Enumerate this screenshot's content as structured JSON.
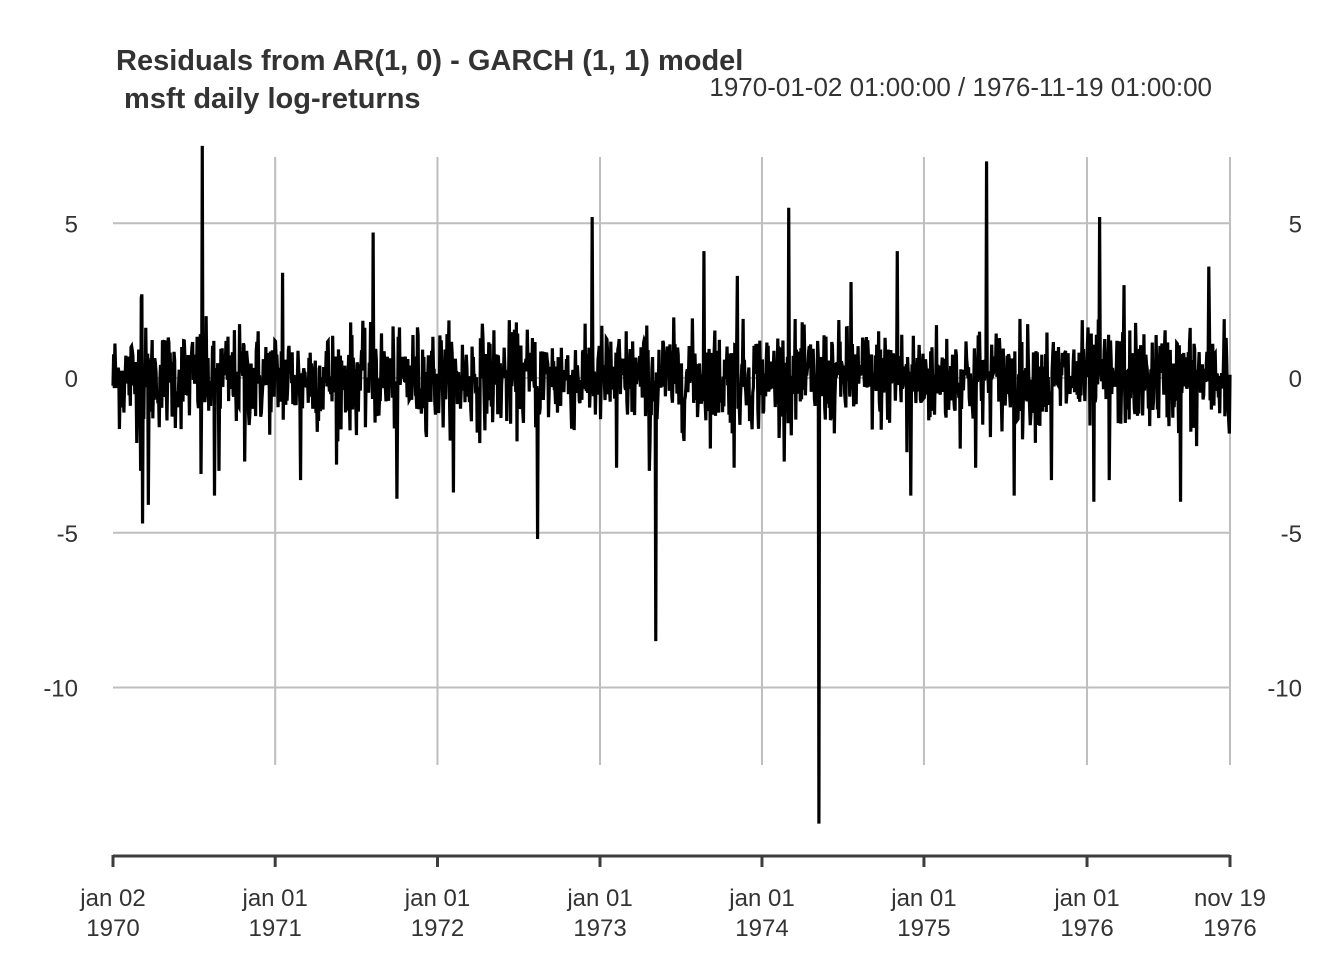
{
  "chart": {
    "title_line1": "Residuals from AR(1, 0) - GARCH (1, 1) model",
    "title_line2": " msft daily log-returns",
    "date_range": "1970-01-02 01:00:00 / 1976-11-19 01:00:00"
  },
  "colors": {
    "series": "#000000",
    "grid": "#bebebe",
    "axis": "#3d3d3d",
    "text": "#333333",
    "background": "#ffffff"
  },
  "chart_data": {
    "type": "line",
    "title": "Residuals from AR(1, 0) - GARCH (1, 1) model — msft daily log-returns",
    "subtitle": "1970-01-02 01:00:00 / 1976-11-19 01:00:00",
    "xlabel": "",
    "ylabel": "",
    "ylim": [
      -14.5,
      7.6
    ],
    "grid": true,
    "legend": "none",
    "y_ticks": [
      5,
      0,
      -5,
      -10
    ],
    "y_tick_labels": [
      "5",
      "0",
      "-5",
      "-10"
    ],
    "y_axis_both_sides": true,
    "x_ticks": [
      {
        "line1": "jan 02",
        "line2": "1970",
        "t": 0.0
      },
      {
        "line1": "jan 01",
        "line2": "1971",
        "t": 0.1452
      },
      {
        "line1": "jan 01",
        "line2": "1972",
        "t": 0.2905
      },
      {
        "line1": "jan 01",
        "line2": "1973",
        "t": 0.436
      },
      {
        "line1": "jan 01",
        "line2": "1974",
        "t": 0.581
      },
      {
        "line1": "jan 01",
        "line2": "1975",
        "t": 0.726
      },
      {
        "line1": "jan 01",
        "line2": "1976",
        "t": 0.872
      },
      {
        "line1": "nov 19",
        "line2": "1976",
        "t": 1.0
      }
    ],
    "series": [
      {
        "name": "residuals",
        "description": "Daily standardized residuals, ~1740 observations, mostly within ±2 with heavy-tailed spikes",
        "n_points": 1740,
        "typical_band": [
          -2.0,
          2.0
        ],
        "spikes": [
          {
            "t": 0.025,
            "value": -3.0
          },
          {
            "t": 0.025,
            "value": 1.8
          },
          {
            "t": 0.025,
            "value": 2.6
          },
          {
            "t": 0.025,
            "value": 1.7
          },
          {
            "t": 0.025,
            "value": 2.7
          },
          {
            "t": 0.025,
            "value": -4.7
          },
          {
            "t": 0.0315,
            "value": -4.1
          },
          {
            "t": 0.08,
            "value": 7.5
          },
          {
            "t": 0.079,
            "value": -3.1
          },
          {
            "t": 0.091,
            "value": -3.8
          },
          {
            "t": 0.095,
            "value": -3.0
          },
          {
            "t": 0.118,
            "value": -2.7
          },
          {
            "t": 0.152,
            "value": 3.4
          },
          {
            "t": 0.168,
            "value": -3.3
          },
          {
            "t": 0.2,
            "value": -2.8
          },
          {
            "t": 0.233,
            "value": 4.7
          },
          {
            "t": 0.254,
            "value": -3.9
          },
          {
            "t": 0.305,
            "value": -3.7
          },
          {
            "t": 0.38,
            "value": -5.2
          },
          {
            "t": 0.429,
            "value": 5.2
          },
          {
            "t": 0.451,
            "value": -2.9
          },
          {
            "t": 0.48,
            "value": -3.0
          },
          {
            "t": 0.486,
            "value": -8.5
          },
          {
            "t": 0.529,
            "value": 4.1
          },
          {
            "t": 0.559,
            "value": 3.3
          },
          {
            "t": 0.556,
            "value": -2.9
          },
          {
            "t": 0.605,
            "value": 5.5
          },
          {
            "t": 0.601,
            "value": -2.7
          },
          {
            "t": 0.632,
            "value": -14.4
          },
          {
            "t": 0.661,
            "value": 3.1
          },
          {
            "t": 0.702,
            "value": 4.1
          },
          {
            "t": 0.714,
            "value": -3.8
          },
          {
            "t": 0.711,
            "value": -2.4
          },
          {
            "t": 0.772,
            "value": -2.9
          },
          {
            "t": 0.782,
            "value": 7.0
          },
          {
            "t": 0.807,
            "value": -3.8
          },
          {
            "t": 0.84,
            "value": -3.3
          },
          {
            "t": 0.878,
            "value": -4.0
          },
          {
            "t": 0.883,
            "value": 5.2
          },
          {
            "t": 0.892,
            "value": -3.3
          },
          {
            "t": 0.905,
            "value": 3.0
          },
          {
            "t": 0.956,
            "value": -4.0
          },
          {
            "t": 0.981,
            "value": 3.6
          },
          {
            "t": 0.97,
            "value": -2.2
          },
          {
            "t": 0.995,
            "value": 1.9
          },
          {
            "t": 0.999,
            "value": -1.4
          }
        ]
      }
    ]
  }
}
